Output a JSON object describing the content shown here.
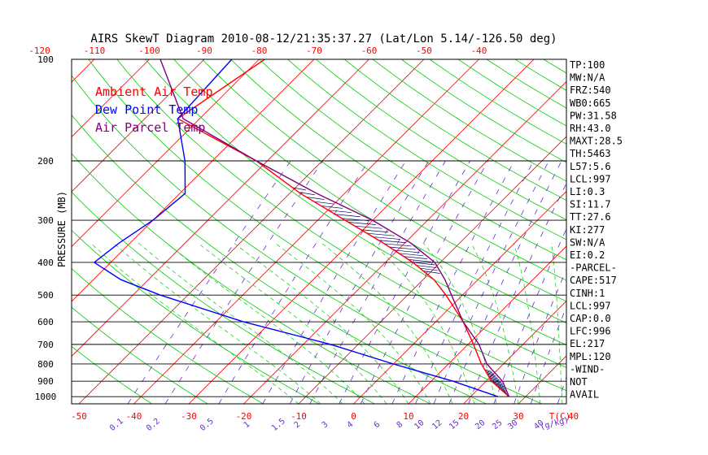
{
  "chart_data": {
    "type": "skewt",
    "title": "AIRS SkewT Diagram 2010-08-12/21:35:37.27 (Lat/Lon 5.14/-126.50 deg)",
    "ylabel": "PRESSURE (MB)",
    "xlabel_top": "",
    "pressure_ticks": [
      100,
      200,
      300,
      400,
      500,
      600,
      700,
      800,
      900,
      1000
    ],
    "pressure_range": [
      100,
      1050
    ],
    "top_temp_ticks": [
      -120,
      -110,
      -100,
      -90,
      -80,
      -70,
      -60,
      -50,
      -40
    ],
    "bottom_temp_ticks": [
      -50,
      -40,
      -30,
      -20,
      -10,
      0,
      10,
      20,
      30,
      40
    ],
    "bottom_temp_unit": "T(C)",
    "mixing_ratio_ticks": [
      "0.1",
      "0.2",
      "0.5",
      "1",
      "1.5",
      "2",
      "3",
      "4",
      "6",
      "8",
      "10",
      "12",
      "15",
      "20",
      "25",
      "30",
      "40"
    ],
    "mixing_ratio_unit": "(g/kg)",
    "legend": [
      {
        "name": "Ambient Air Temp",
        "color": "#ff0000"
      },
      {
        "name": "Dew Point Temp",
        "color": "#0000ff"
      },
      {
        "name": "Air Parcel Temp",
        "color": "#800080"
      }
    ],
    "series": [
      {
        "name": "Ambient Air Temp",
        "color": "#ff0000",
        "points": [
          [
            100,
            -79
          ],
          [
            150,
            -84
          ],
          [
            200,
            -62
          ],
          [
            250,
            -48
          ],
          [
            300,
            -35
          ],
          [
            350,
            -24
          ],
          [
            400,
            -15
          ],
          [
            450,
            -8
          ],
          [
            500,
            -3
          ],
          [
            600,
            5
          ],
          [
            700,
            11
          ],
          [
            800,
            16
          ],
          [
            900,
            21
          ],
          [
            1000,
            27
          ]
        ]
      },
      {
        "name": "Dew Point Temp",
        "color": "#0000ff",
        "points": [
          [
            100,
            -85
          ],
          [
            150,
            -84
          ],
          [
            200,
            -75
          ],
          [
            250,
            -69
          ],
          [
            300,
            -70
          ],
          [
            350,
            -72
          ],
          [
            400,
            -73
          ],
          [
            450,
            -65
          ],
          [
            500,
            -55
          ],
          [
            600,
            -35
          ],
          [
            700,
            -15
          ],
          [
            800,
            0
          ],
          [
            900,
            14
          ],
          [
            1000,
            25
          ]
        ]
      },
      {
        "name": "Air Parcel Temp",
        "color": "#800080",
        "points": [
          [
            100,
            -98
          ],
          [
            150,
            -83
          ],
          [
            200,
            -62
          ],
          [
            250,
            -45
          ],
          [
            300,
            -30
          ],
          [
            350,
            -19
          ],
          [
            400,
            -11
          ],
          [
            450,
            -6
          ],
          [
            500,
            -2
          ],
          [
            600,
            5
          ],
          [
            700,
            12
          ],
          [
            800,
            17
          ],
          [
            900,
            23
          ],
          [
            1000,
            27
          ]
        ]
      }
    ],
    "indices": [
      "TP:100",
      "MW:N/A",
      "FRZ:540",
      "WB0:665",
      "PW:31.58",
      "RH:43.0",
      "MAXT:28.5",
      "TH:5463",
      "L57:5.6",
      "LCL:997",
      "LI:0.3",
      "SI:11.7",
      "TT:27.6",
      "KI:277",
      "SW:N/A",
      "EI:0.2",
      "-PARCEL-",
      "CAPE:517",
      "CINH:1",
      "LCL:997",
      "CAP:0.0",
      "LFC:996",
      "EL:217",
      "MPL:120",
      "-WIND-",
      "NOT",
      "AVAIL"
    ]
  }
}
